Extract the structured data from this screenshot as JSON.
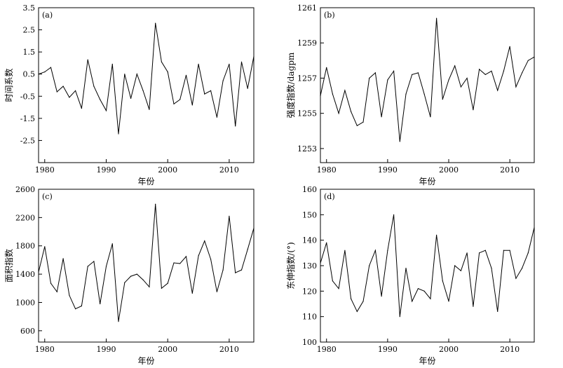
{
  "chart_data": [
    {
      "type": "line",
      "panel_label": "(a)",
      "xlabel": "年份",
      "ylabel": "时间系数",
      "xlim": [
        1979,
        2014
      ],
      "ylim": [
        -3.5,
        3.5
      ],
      "xticks": [
        1980,
        1990,
        2000,
        2010
      ],
      "yticks": [
        -2.5,
        -1.5,
        -0.5,
        0.5,
        1.5,
        2.5,
        3.5
      ],
      "ytick_labels": [
        "-2.5",
        "-1.5",
        "-0.5",
        "0.5",
        "1.5",
        "2.5",
        "3.5"
      ],
      "x": [
        1979,
        1980,
        1981,
        1982,
        1983,
        1984,
        1985,
        1986,
        1987,
        1988,
        1989,
        1990,
        1991,
        1992,
        1993,
        1994,
        1995,
        1996,
        1997,
        1998,
        1999,
        2000,
        2001,
        2002,
        2003,
        2004,
        2005,
        2006,
        2007,
        2008,
        2009,
        2010,
        2011,
        2012,
        2013,
        2014
      ],
      "y": [
        0.5,
        0.6,
        0.8,
        -0.3,
        -0.05,
        -0.55,
        -0.25,
        -1.05,
        1.15,
        -0.05,
        -0.65,
        -1.15,
        0.95,
        -2.2,
        0.5,
        -0.6,
        0.5,
        -0.25,
        -1.1,
        2.8,
        1.05,
        0.6,
        -0.85,
        -0.65,
        0.45,
        -0.9,
        0.95,
        -0.4,
        -0.25,
        -1.45,
        0.2,
        0.95,
        -1.85,
        1.05,
        -0.15,
        1.3
      ]
    },
    {
      "type": "line",
      "panel_label": "(b)",
      "xlabel": "年份",
      "ylabel": "强度指数/dagpm",
      "xlim": [
        1979,
        2014
      ],
      "ylim": [
        1252.2,
        1261
      ],
      "xticks": [
        1980,
        1990,
        2000,
        2010
      ],
      "yticks": [
        1253,
        1255,
        1257,
        1259,
        1261
      ],
      "ytick_labels": [
        "1253",
        "1255",
        "1257",
        "1259",
        "1261"
      ],
      "x": [
        1979,
        1980,
        1981,
        1982,
        1983,
        1984,
        1985,
        1986,
        1987,
        1988,
        1989,
        1990,
        1991,
        1992,
        1993,
        1994,
        1995,
        1996,
        1997,
        1998,
        1999,
        2000,
        2001,
        2002,
        2003,
        2004,
        2005,
        2006,
        2007,
        2008,
        2009,
        2010,
        2011,
        2012,
        2013,
        2014
      ],
      "y": [
        1256,
        1257.6,
        1256.1,
        1255,
        1256.3,
        1255.1,
        1254.3,
        1254.5,
        1257,
        1257.3,
        1254.8,
        1256.9,
        1257.4,
        1253.4,
        1256.1,
        1257.2,
        1257.3,
        1256.1,
        1254.8,
        1260.4,
        1255.8,
        1256.9,
        1257.7,
        1256.5,
        1257,
        1255.2,
        1257.5,
        1257.2,
        1257.4,
        1256.3,
        1257.4,
        1258.8,
        1256.5,
        1257.3,
        1258,
        1258.2
      ]
    },
    {
      "type": "line",
      "panel_label": "(c)",
      "xlabel": "年份",
      "ylabel": "面积指数",
      "xlim": [
        1979,
        2014
      ],
      "ylim": [
        440,
        2600
      ],
      "xticks": [
        1980,
        1990,
        2000,
        2010
      ],
      "yticks": [
        600,
        1000,
        1400,
        1800,
        2200,
        2600
      ],
      "ytick_labels": [
        "600",
        "1000",
        "1400",
        "1800",
        "2200",
        "2600"
      ],
      "x": [
        1979,
        1980,
        1981,
        1982,
        1983,
        1984,
        1985,
        1986,
        1987,
        1988,
        1989,
        1990,
        1991,
        1992,
        1993,
        1994,
        1995,
        1996,
        1997,
        1998,
        1999,
        2000,
        2001,
        2002,
        2003,
        2004,
        2005,
        2006,
        2007,
        2008,
        2009,
        2010,
        2011,
        2012,
        2013,
        2014
      ],
      "y": [
        1430,
        1790,
        1270,
        1150,
        1620,
        1100,
        910,
        950,
        1510,
        1580,
        980,
        1510,
        1830,
        730,
        1280,
        1370,
        1400,
        1320,
        1220,
        2390,
        1200,
        1270,
        1560,
        1550,
        1650,
        1130,
        1660,
        1870,
        1610,
        1150,
        1460,
        2220,
        1420,
        1460,
        1750,
        2050
      ]
    },
    {
      "type": "line",
      "panel_label": "(d)",
      "xlabel": "年份",
      "ylabel": "东伸指数/(°)",
      "xlim": [
        1979,
        2014
      ],
      "ylim": [
        100,
        160
      ],
      "xticks": [
        1980,
        1990,
        2000,
        2010
      ],
      "yticks": [
        100,
        110,
        120,
        130,
        140,
        150,
        160
      ],
      "ytick_labels": [
        "100",
        "110",
        "120",
        "130",
        "140",
        "150",
        "160"
      ],
      "x": [
        1979,
        1980,
        1981,
        1982,
        1983,
        1984,
        1985,
        1986,
        1987,
        1988,
        1989,
        1990,
        1991,
        1992,
        1993,
        1994,
        1995,
        1996,
        1997,
        1998,
        1999,
        2000,
        2001,
        2002,
        2003,
        2004,
        2005,
        2006,
        2007,
        2008,
        2009,
        2010,
        2011,
        2012,
        2013,
        2014
      ],
      "y": [
        131,
        139,
        124,
        121,
        136,
        117,
        112,
        116,
        130,
        136,
        118,
        136,
        150,
        110,
        129,
        116,
        121,
        120,
        117,
        142,
        124,
        116,
        130,
        128,
        135,
        114,
        135,
        136,
        129,
        112,
        136,
        136,
        125,
        129,
        135,
        145
      ]
    }
  ]
}
